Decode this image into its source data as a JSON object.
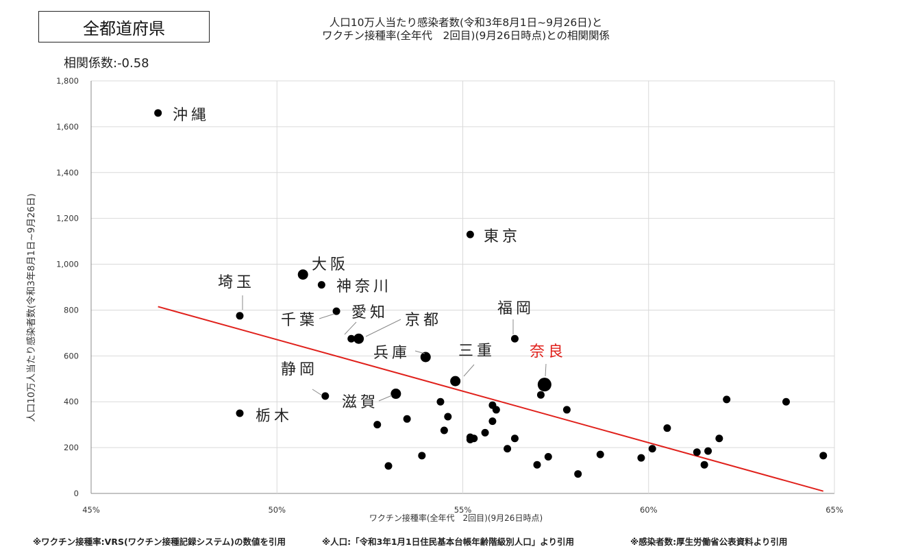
{
  "header": {
    "region_label": "全都道府県",
    "title_line1": "人口10万人当たり感染者数(令和3年8月1日~9月26日)と",
    "title_line2": "ワクチン接種率(全年代　2回目)(9月26日時点)との相関関係",
    "correlation": "相関係数:-0.58"
  },
  "footnotes": {
    "vaccination": "※ワクチン接種率:VRS(ワクチン接種記録システム)の数値を引用",
    "population": "※人口:「令和3年1月1日住民基本台帳年齢階級別人口」より引用",
    "infections": "※感染者数:厚生労働省公表資料より引用"
  },
  "chart_data": {
    "type": "scatter",
    "xlabel": "ワクチン接種率(全年代　2回目)(9月26日時点)",
    "ylabel": "人口10万人当たり感染者数(令和3年8月1日~9月26日)",
    "xlim": [
      45,
      65
    ],
    "ylim": [
      0,
      1800
    ],
    "x_ticks": [
      "45%",
      "50%",
      "55%",
      "60%",
      "65%"
    ],
    "y_ticks": [
      "0",
      "200",
      "400",
      "600",
      "800",
      "1,000",
      "1,200",
      "1,400",
      "1,600",
      "1,800"
    ],
    "grid": true,
    "colors": {
      "points": "#000000",
      "trend": "#e0201b",
      "highlight_label": "#e0201b",
      "grid": "#d9d9d9"
    },
    "trendline": {
      "x": [
        46.8,
        64.7
      ],
      "y": [
        815,
        10
      ]
    },
    "points": [
      {
        "x": 46.8,
        "y": 1660,
        "label": "沖縄",
        "size": "small"
      },
      {
        "x": 50.7,
        "y": 955,
        "label": "大阪",
        "size": "large"
      },
      {
        "x": 49.0,
        "y": 775,
        "label": "埼玉",
        "size": "small"
      },
      {
        "x": 51.2,
        "y": 910,
        "label": "神奈川",
        "size": "small"
      },
      {
        "x": 55.2,
        "y": 1130,
        "label": "東京",
        "size": "small"
      },
      {
        "x": 51.6,
        "y": 795,
        "label": "千葉",
        "size": "small"
      },
      {
        "x": 52.2,
        "y": 675,
        "label": "愛知",
        "size": "large"
      },
      {
        "x": 52.0,
        "y": 675,
        "label": "京都",
        "size": "small"
      },
      {
        "x": 54.0,
        "y": 595,
        "label": "兵庫",
        "size": "large"
      },
      {
        "x": 56.4,
        "y": 675,
        "label": "福岡",
        "size": "small"
      },
      {
        "x": 54.8,
        "y": 490,
        "label": "三重",
        "size": "large"
      },
      {
        "x": 57.2,
        "y": 475,
        "label": "奈良",
        "size": "xlarge",
        "highlight": true
      },
      {
        "x": 51.3,
        "y": 425,
        "label": "静岡",
        "size": "small"
      },
      {
        "x": 53.2,
        "y": 435,
        "label": "滋賀",
        "size": "large"
      },
      {
        "x": 49.0,
        "y": 350,
        "label": "栃木",
        "size": "small"
      },
      {
        "x": 52.7,
        "y": 300
      },
      {
        "x": 53.0,
        "y": 120
      },
      {
        "x": 53.5,
        "y": 325
      },
      {
        "x": 53.9,
        "y": 165
      },
      {
        "x": 54.4,
        "y": 400
      },
      {
        "x": 54.5,
        "y": 275
      },
      {
        "x": 54.6,
        "y": 335
      },
      {
        "x": 55.2,
        "y": 235
      },
      {
        "x": 55.2,
        "y": 245
      },
      {
        "x": 55.3,
        "y": 240
      },
      {
        "x": 55.6,
        "y": 265
      },
      {
        "x": 55.8,
        "y": 315
      },
      {
        "x": 55.8,
        "y": 385
      },
      {
        "x": 55.9,
        "y": 365
      },
      {
        "x": 56.2,
        "y": 195
      },
      {
        "x": 56.4,
        "y": 240
      },
      {
        "x": 57.0,
        "y": 125
      },
      {
        "x": 57.1,
        "y": 430
      },
      {
        "x": 57.3,
        "y": 160
      },
      {
        "x": 57.8,
        "y": 365
      },
      {
        "x": 58.1,
        "y": 85
      },
      {
        "x": 58.7,
        "y": 170
      },
      {
        "x": 59.8,
        "y": 155
      },
      {
        "x": 60.1,
        "y": 195
      },
      {
        "x": 60.5,
        "y": 285
      },
      {
        "x": 61.3,
        "y": 180
      },
      {
        "x": 61.5,
        "y": 125
      },
      {
        "x": 61.6,
        "y": 185
      },
      {
        "x": 61.9,
        "y": 240
      },
      {
        "x": 62.1,
        "y": 410
      },
      {
        "x": 63.7,
        "y": 400
      },
      {
        "x": 64.7,
        "y": 165
      }
    ]
  }
}
